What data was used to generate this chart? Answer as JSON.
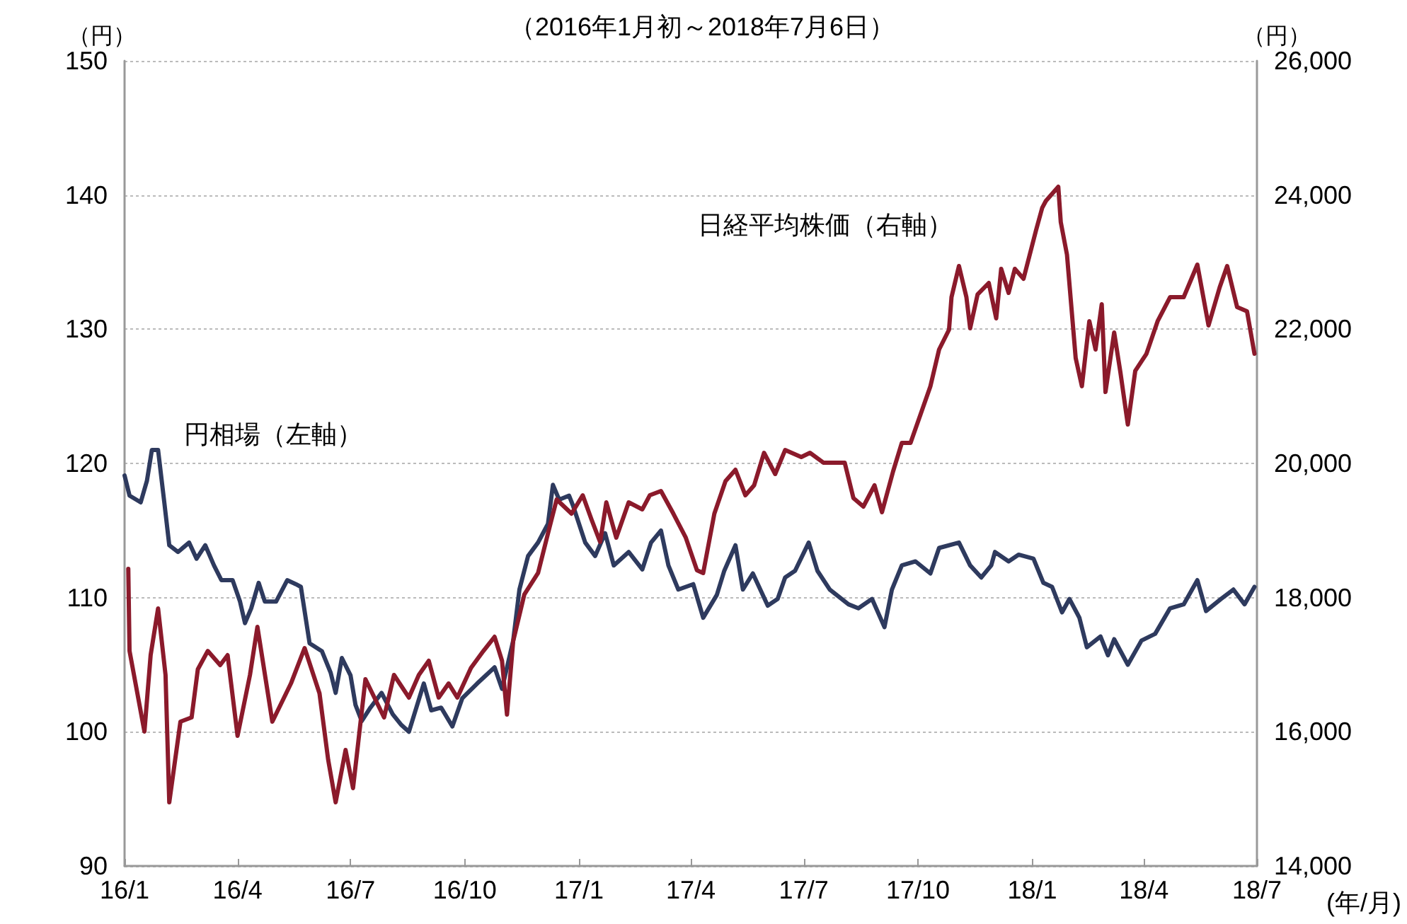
{
  "chart_data": {
    "type": "line",
    "title": "（2016年1月初～2018年7月6日）",
    "xlabel": "(年/月)",
    "ylabel": "（円）",
    "y2label": "（円）",
    "xlim": [
      "2016-01-01",
      "2018-07-01"
    ],
    "xticks": [
      {
        "value": "2016-01",
        "label": "16/1"
      },
      {
        "value": "2016-04",
        "label": "16/4"
      },
      {
        "value": "2016-07",
        "label": "16/7"
      },
      {
        "value": "2016-10",
        "label": "16/10"
      },
      {
        "value": "2017-01",
        "label": "17/1"
      },
      {
        "value": "2017-04",
        "label": "17/4"
      },
      {
        "value": "2017-07",
        "label": "17/7"
      },
      {
        "value": "2017-10",
        "label": "17/10"
      },
      {
        "value": "2018-01",
        "label": "18/1"
      },
      {
        "value": "2018-04",
        "label": "18/4"
      },
      {
        "value": "2018-07",
        "label": "18/7"
      }
    ],
    "ylim": [
      90,
      150
    ],
    "yticks": [
      90,
      100,
      110,
      120,
      130,
      140,
      150
    ],
    "y2lim": [
      14000,
      26000
    ],
    "y2ticks": [
      {
        "value": 14000,
        "label": "14,000"
      },
      {
        "value": 16000,
        "label": "16,000"
      },
      {
        "value": 18000,
        "label": "18,000"
      },
      {
        "value": 20000,
        "label": "20,000"
      },
      {
        "value": 22000,
        "label": "22,000"
      },
      {
        "value": 24000,
        "label": "24,000"
      },
      {
        "value": 26000,
        "label": "26,000"
      }
    ],
    "grid": "y",
    "legend": false,
    "marker": "none",
    "line_style": "solid",
    "series": [
      {
        "name": "円相場（左軸）",
        "color": "#2e3a5e",
        "axis": "y",
        "x": [
          "2016-01-01",
          "2016-01-05",
          "2016-01-14",
          "2016-01-19",
          "2016-01-23",
          "2016-01-28",
          "2016-02-02",
          "2016-02-06",
          "2016-02-13",
          "2016-02-22",
          "2016-02-28",
          "2016-03-06",
          "2016-03-13",
          "2016-03-19",
          "2016-03-28",
          "2016-04-03",
          "2016-04-07",
          "2016-04-12",
          "2016-04-18",
          "2016-04-23",
          "2016-05-02",
          "2016-05-11",
          "2016-05-18",
          "2016-05-22",
          "2016-05-29",
          "2016-06-08",
          "2016-06-15",
          "2016-06-19",
          "2016-06-24",
          "2016-07-01",
          "2016-07-05",
          "2016-07-10",
          "2016-07-17",
          "2016-07-26",
          "2016-08-04",
          "2016-08-11",
          "2016-08-17",
          "2016-08-29",
          "2016-09-04",
          "2016-09-12",
          "2016-09-21",
          "2016-09-29",
          "2016-10-11",
          "2016-10-25",
          "2016-10-31",
          "2016-11-09",
          "2016-11-14",
          "2016-11-21",
          "2016-11-29",
          "2016-12-07",
          "2016-12-11",
          "2016-12-16",
          "2016-12-24",
          "2016-12-27",
          "2017-01-06",
          "2017-01-14",
          "2017-01-22",
          "2017-01-29",
          "2017-02-10",
          "2017-02-21",
          "2017-02-28",
          "2017-03-08",
          "2017-03-14",
          "2017-03-22",
          "2017-04-03",
          "2017-04-11",
          "2017-04-22",
          "2017-04-28",
          "2017-05-07",
          "2017-05-13",
          "2017-05-21",
          "2017-06-02",
          "2017-06-10",
          "2017-06-16",
          "2017-06-24",
          "2017-07-05",
          "2017-07-12",
          "2017-07-22",
          "2017-08-06",
          "2017-08-14",
          "2017-08-25",
          "2017-09-04",
          "2017-09-10",
          "2017-09-18",
          "2017-09-29",
          "2017-10-11",
          "2017-10-18",
          "2017-11-03",
          "2017-11-12",
          "2017-11-21",
          "2017-11-29",
          "2017-12-02",
          "2017-12-13",
          "2017-12-21",
          "2018-01-02",
          "2018-01-10",
          "2018-01-17",
          "2018-01-25",
          "2018-01-31",
          "2018-02-08",
          "2018-02-14",
          "2018-02-25",
          "2018-03-03",
          "2018-03-08",
          "2018-03-19",
          "2018-03-30",
          "2018-04-10",
          "2018-04-22",
          "2018-05-03",
          "2018-05-14",
          "2018-05-21",
          "2018-06-02",
          "2018-06-12",
          "2018-06-21",
          "2018-06-29"
        ],
        "values": [
          119.1,
          117.6,
          117.1,
          118.7,
          121.0,
          121.0,
          117.1,
          113.9,
          113.4,
          114.1,
          112.9,
          113.9,
          112.4,
          111.3,
          111.3,
          109.7,
          108.1,
          109.2,
          111.1,
          109.7,
          109.7,
          111.3,
          111.0,
          110.8,
          106.6,
          106.0,
          104.4,
          102.9,
          105.5,
          104.2,
          102.0,
          100.8,
          101.8,
          102.9,
          101.3,
          100.5,
          100.0,
          103.6,
          101.6,
          101.8,
          100.4,
          102.5,
          103.6,
          104.8,
          103.2,
          106.8,
          110.6,
          113.1,
          114.1,
          115.5,
          118.4,
          117.3,
          117.6,
          116.9,
          114.1,
          113.1,
          114.8,
          112.4,
          113.4,
          112.1,
          114.1,
          115.0,
          112.4,
          110.6,
          111.0,
          108.5,
          110.2,
          112.0,
          113.9,
          110.6,
          111.8,
          109.4,
          109.9,
          111.5,
          112.0,
          114.1,
          112.0,
          110.6,
          109.5,
          109.2,
          109.9,
          107.8,
          110.6,
          112.4,
          112.7,
          111.8,
          113.7,
          114.1,
          112.4,
          111.5,
          112.4,
          113.4,
          112.7,
          113.2,
          112.9,
          111.1,
          110.8,
          108.9,
          109.9,
          108.5,
          106.3,
          107.1,
          105.7,
          106.9,
          105.0,
          106.8,
          107.3,
          109.2,
          109.5,
          111.3,
          109.0,
          109.9,
          110.6,
          109.5,
          110.8
        ]
      },
      {
        "name": "日経平均株価（右軸）",
        "color": "#8b1a2b",
        "axis": "y2",
        "x": [
          "2016-01-04",
          "2016-01-05",
          "2016-01-17",
          "2016-01-22",
          "2016-01-28",
          "2016-02-03",
          "2016-02-06",
          "2016-02-15",
          "2016-02-24",
          "2016-02-29",
          "2016-03-08",
          "2016-03-18",
          "2016-03-24",
          "2016-04-01",
          "2016-04-11",
          "2016-04-17",
          "2016-04-29",
          "2016-05-14",
          "2016-05-25",
          "2016-06-06",
          "2016-06-13",
          "2016-06-19",
          "2016-06-27",
          "2016-07-03",
          "2016-07-13",
          "2016-07-28",
          "2016-08-05",
          "2016-08-17",
          "2016-08-25",
          "2016-09-02",
          "2016-09-10",
          "2016-09-18",
          "2016-09-25",
          "2016-10-06",
          "2016-10-16",
          "2016-10-25",
          "2016-10-31",
          "2016-11-04",
          "2016-11-09",
          "2016-11-18",
          "2016-11-29",
          "2016-12-07",
          "2016-12-14",
          "2016-12-26",
          "2017-01-04",
          "2017-01-11",
          "2017-01-18",
          "2017-01-23",
          "2017-01-31",
          "2017-02-10",
          "2017-02-21",
          "2017-02-27",
          "2017-03-08",
          "2017-03-18",
          "2017-03-28",
          "2017-04-06",
          "2017-04-11",
          "2017-04-20",
          "2017-04-29",
          "2017-05-07",
          "2017-05-15",
          "2017-05-22",
          "2017-05-30",
          "2017-06-08",
          "2017-06-16",
          "2017-06-29",
          "2017-07-06",
          "2017-07-17",
          "2017-08-03",
          "2017-08-10",
          "2017-08-18",
          "2017-08-27",
          "2017-09-02",
          "2017-09-11",
          "2017-09-18",
          "2017-09-25",
          "2017-10-03",
          "2017-10-11",
          "2017-10-18",
          "2017-10-26",
          "2017-10-28",
          "2017-11-03",
          "2017-11-09",
          "2017-11-12",
          "2017-11-18",
          "2017-11-27",
          "2017-12-03",
          "2017-12-07",
          "2017-12-13",
          "2017-12-18",
          "2017-12-25",
          "2018-01-04",
          "2018-01-09",
          "2018-01-12",
          "2018-01-22",
          "2018-01-24",
          "2018-01-29",
          "2018-02-05",
          "2018-02-10",
          "2018-02-16",
          "2018-02-21",
          "2018-02-26",
          "2018-03-01",
          "2018-03-08",
          "2018-03-13",
          "2018-03-19",
          "2018-03-25",
          "2018-04-03",
          "2018-04-12",
          "2018-04-22",
          "2018-05-03",
          "2018-05-14",
          "2018-05-23",
          "2018-06-01",
          "2018-06-07",
          "2018-06-15",
          "2018-06-23",
          "2018-06-29"
        ],
        "values": [
          18430,
          17205,
          16003,
          17142,
          17838,
          16847,
          14949,
          16151,
          16214,
          16931,
          17205,
          16995,
          17142,
          15940,
          16847,
          17564,
          16151,
          16720,
          17248,
          16573,
          15581,
          14949,
          15729,
          15160,
          16784,
          16214,
          16847,
          16510,
          16847,
          17058,
          16510,
          16720,
          16510,
          16952,
          17205,
          17416,
          17058,
          16257,
          17353,
          18049,
          18366,
          18956,
          19462,
          19251,
          19525,
          19167,
          18829,
          19420,
          18893,
          19420,
          19315,
          19525,
          19589,
          19251,
          18893,
          18408,
          18366,
          19251,
          19736,
          19905,
          19525,
          19673,
          20158,
          19842,
          20200,
          20095,
          20158,
          20010,
          20010,
          19483,
          19357,
          19673,
          19272,
          19884,
          20306,
          20306,
          20728,
          21150,
          21698,
          21993,
          22478,
          22942,
          22478,
          22014,
          22520,
          22689,
          22162,
          22900,
          22541,
          22900,
          22752,
          23469,
          23807,
          23912,
          24123,
          23596,
          23111,
          21571,
          21150,
          22120,
          21698,
          22373,
          21065,
          21951,
          21360,
          20580,
          21381,
          21634,
          22120,
          22478,
          22478,
          22963,
          22056,
          22626,
          22942,
          22330,
          22267,
          21634
        ]
      }
    ]
  }
}
